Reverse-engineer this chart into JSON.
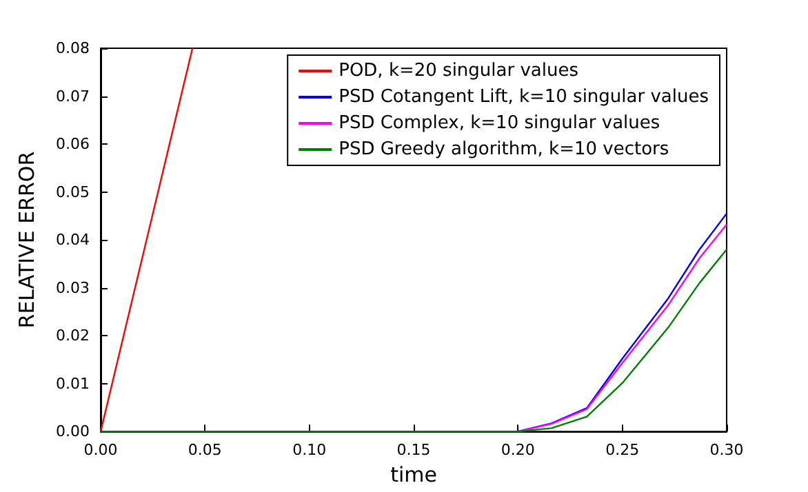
{
  "chart_data": {
    "type": "line",
    "xlabel": "time",
    "ylabel": "RELATIVE ERROR",
    "legend": "top right",
    "grid": false,
    "marker": "none",
    "line_style": "solid",
    "xlim": [
      0,
      0.3
    ],
    "ylim": [
      0,
      0.08
    ],
    "xticks": [
      {
        "value": 0,
        "label": "0.00"
      },
      {
        "value": 0.05,
        "label": "0.05"
      },
      {
        "value": 0.1,
        "label": "0.10"
      },
      {
        "value": 0.15,
        "label": "0.15"
      },
      {
        "value": 0.2,
        "label": "0.20"
      },
      {
        "value": 0.25,
        "label": "0.25"
      },
      {
        "value": 0.3,
        "label": "0.30"
      }
    ],
    "yticks": [
      {
        "value": 0,
        "label": "0.00"
      },
      {
        "value": 0.01,
        "label": "0.01"
      },
      {
        "value": 0.02,
        "label": "0.02"
      },
      {
        "value": 0.03,
        "label": "0.03"
      },
      {
        "value": 0.04,
        "label": "0.04"
      },
      {
        "value": 0.05,
        "label": "0.05"
      },
      {
        "value": 0.06,
        "label": "0.06"
      },
      {
        "value": 0.07,
        "label": "0.07"
      },
      {
        "value": 0.08,
        "label": "0.08"
      }
    ],
    "series": [
      {
        "name": "POD, k=20 singular values",
        "color": "#ff0000",
        "x": [
          0,
          0.044
        ],
        "values": [
          0,
          0.08
        ]
      },
      {
        "name": "PSD Cotangent Lift, k=10 singular values",
        "color": "#0000ff",
        "x": [
          0.2,
          0.216,
          0.233,
          0.25,
          0.272,
          0.287,
          0.3
        ],
        "values": [
          0,
          0.0017,
          0.0049,
          0.0152,
          0.0278,
          0.038,
          0.0455
        ]
      },
      {
        "name": "PSD Complex, k=10 singular values",
        "color": "#ff00ff",
        "x": [
          0.2,
          0.216,
          0.233,
          0.25,
          0.272,
          0.287,
          0.3
        ],
        "values": [
          0,
          0.0016,
          0.0047,
          0.0143,
          0.0264,
          0.0362,
          0.0432
        ]
      },
      {
        "name": "PSD Greedy algorithm, k=10 vectors",
        "color": "#008000",
        "x": [
          0,
          0.1,
          0.2,
          0.216,
          0.233,
          0.25,
          0.272,
          0.287,
          0.3
        ],
        "values": [
          0,
          0,
          0,
          0.0007,
          0.0031,
          0.0101,
          0.0217,
          0.031,
          0.038
        ]
      }
    ]
  }
}
